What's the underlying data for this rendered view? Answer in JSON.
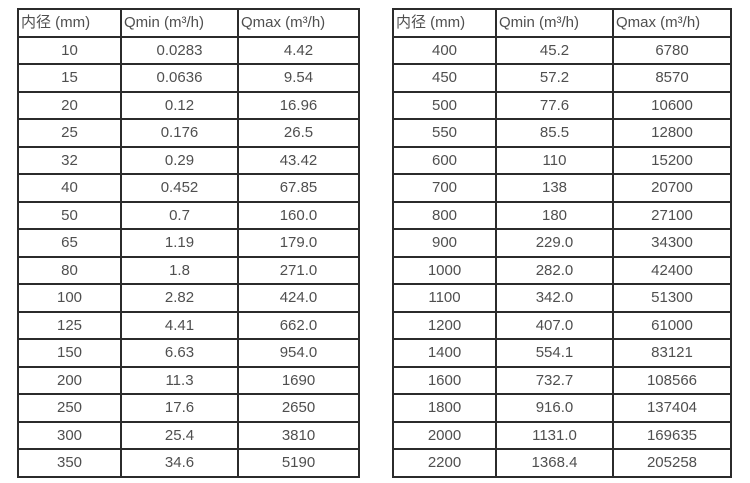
{
  "colors": {
    "background": "#ffffff",
    "border": "#2b2b2b",
    "text": "#4f4f4f"
  },
  "chart_data": [
    {
      "type": "table",
      "title": "",
      "columns": [
        "内径 (mm)",
        "Qmin (m³/h)",
        "Qmax (m³/h)"
      ],
      "rows": [
        [
          "10",
          "0.0283",
          "4.42"
        ],
        [
          "15",
          "0.0636",
          "9.54"
        ],
        [
          "20",
          "0.12",
          "16.96"
        ],
        [
          "25",
          "0.176",
          "26.5"
        ],
        [
          "32",
          "0.29",
          "43.42"
        ],
        [
          "40",
          "0.452",
          "67.85"
        ],
        [
          "50",
          "0.7",
          "160.0"
        ],
        [
          "65",
          "1.19",
          "179.0"
        ],
        [
          "80",
          "1.8",
          "271.0"
        ],
        [
          "100",
          "2.82",
          "424.0"
        ],
        [
          "125",
          "4.41",
          "662.0"
        ],
        [
          "150",
          "6.63",
          "954.0"
        ],
        [
          "200",
          "11.3",
          "1690"
        ],
        [
          "250",
          "17.6",
          "2650"
        ],
        [
          "300",
          "25.4",
          "3810"
        ],
        [
          "350",
          "34.6",
          "5190"
        ]
      ]
    },
    {
      "type": "table",
      "title": "",
      "columns": [
        "内径 (mm)",
        "Qmin (m³/h)",
        "Qmax (m³/h)"
      ],
      "rows": [
        [
          "400",
          "45.2",
          "6780"
        ],
        [
          "450",
          "57.2",
          "8570"
        ],
        [
          "500",
          "77.6",
          "10600"
        ],
        [
          "550",
          "85.5",
          "12800"
        ],
        [
          "600",
          "110",
          "15200"
        ],
        [
          "700",
          "138",
          "20700"
        ],
        [
          "800",
          "180",
          "27100"
        ],
        [
          "900",
          "229.0",
          "34300"
        ],
        [
          "1000",
          "282.0",
          "42400"
        ],
        [
          "1100",
          "342.0",
          "51300"
        ],
        [
          "1200",
          "407.0",
          "61000"
        ],
        [
          "1400",
          "554.1",
          "83121"
        ],
        [
          "1600",
          "732.7",
          "108566"
        ],
        [
          "1800",
          "916.0",
          "137404"
        ],
        [
          "2000",
          "1131.0",
          "169635"
        ],
        [
          "2200",
          "1368.4",
          "205258"
        ]
      ]
    }
  ]
}
